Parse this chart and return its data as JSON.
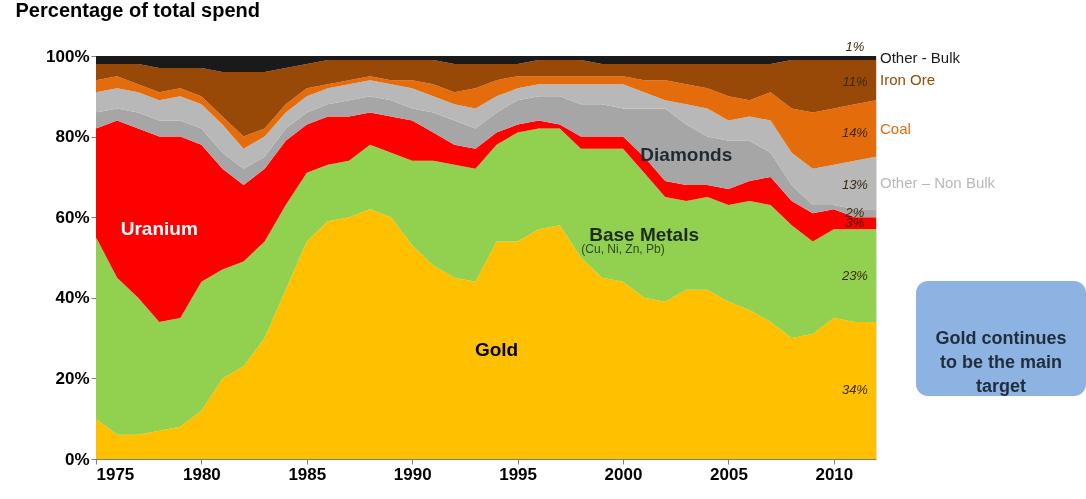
{
  "chart_data": {
    "type": "area",
    "title": "Percentage of total spend",
    "stacked": true,
    "grid": false,
    "x": [
      1975,
      1976,
      1977,
      1978,
      1979,
      1980,
      1981,
      1982,
      1983,
      1984,
      1985,
      1986,
      1987,
      1988,
      1989,
      1990,
      1991,
      1992,
      1993,
      1994,
      1995,
      1996,
      1997,
      1998,
      1999,
      2000,
      2001,
      2002,
      2003,
      2004,
      2005,
      2006,
      2007,
      2008,
      2009,
      2010,
      2011,
      2012
    ],
    "xlim": [
      1975,
      2012
    ],
    "xticks": [
      1975,
      1980,
      1985,
      1990,
      1995,
      2000,
      2005,
      2010
    ],
    "ylim": [
      0,
      100
    ],
    "yticks": [
      {
        "value": 0,
        "label": "0%"
      },
      {
        "value": 20,
        "label": "20%"
      },
      {
        "value": 40,
        "label": "40%"
      },
      {
        "value": 60,
        "label": "60%"
      },
      {
        "value": 80,
        "label": "80%"
      },
      {
        "value": 100,
        "label": "100%"
      }
    ],
    "series": [
      {
        "name": "Gold",
        "color": "#ffc000",
        "values": [
          10,
          6,
          6,
          7,
          8,
          12,
          20,
          23,
          30,
          42,
          54,
          59,
          60,
          62,
          60,
          53,
          48,
          45,
          44,
          54,
          54,
          57,
          58,
          50,
          45,
          44,
          40,
          39,
          42,
          42,
          39,
          37,
          34,
          30,
          31,
          35,
          34,
          34
        ]
      },
      {
        "name": "Base Metals",
        "color": "#92d050",
        "values": [
          45,
          39,
          34,
          27,
          27,
          32,
          27,
          26,
          24,
          21,
          17,
          14,
          14,
          16,
          16,
          21,
          26,
          28,
          28,
          24,
          27,
          25,
          24,
          27,
          32,
          33,
          31,
          26,
          22,
          23,
          24,
          27,
          29,
          28,
          23,
          22,
          23,
          23
        ]
      },
      {
        "name": "Uranium",
        "color": "#ff0000",
        "values": [
          27,
          39,
          42,
          46,
          45,
          34,
          25,
          19,
          18,
          16,
          12,
          12,
          11,
          8,
          9,
          10,
          7,
          5,
          5,
          3,
          2,
          2,
          1,
          3,
          3,
          3,
          4,
          4,
          4,
          3,
          4,
          5,
          7,
          6,
          7,
          5,
          3,
          3
        ]
      },
      {
        "name": "Diamonds",
        "color": "#a6a6a6",
        "values": [
          4,
          3,
          4,
          4,
          4,
          4,
          4,
          4,
          3,
          3,
          3,
          3,
          4,
          4,
          4,
          3,
          5,
          6,
          5,
          5,
          6,
          6,
          7,
          8,
          8,
          7,
          12,
          18,
          15,
          12,
          12,
          10,
          6,
          4,
          2,
          1,
          2,
          2
        ]
      },
      {
        "name": "Other – Non Bulk",
        "color": "#b8b8b8",
        "values": [
          5,
          5,
          5,
          5,
          6,
          6,
          7,
          5,
          5,
          4,
          4,
          4,
          4,
          4,
          4,
          5,
          4,
          4,
          5,
          4,
          3,
          3,
          3,
          5,
          5,
          6,
          4,
          2,
          5,
          7,
          5,
          6,
          8,
          8,
          9,
          10,
          12,
          13
        ]
      },
      {
        "name": "Coal",
        "color": "#e46c0a",
        "values": [
          3,
          3,
          2,
          2,
          2,
          2,
          2,
          3,
          2,
          2,
          2,
          1,
          1,
          1,
          1,
          2,
          3,
          3,
          5,
          4,
          3,
          2,
          2,
          2,
          2,
          2,
          3,
          5,
          5,
          5,
          6,
          4,
          7,
          11,
          14,
          14,
          14,
          14
        ]
      },
      {
        "name": "Iron Ore",
        "color": "#984807",
        "values": [
          4,
          3,
          5,
          6,
          5,
          7,
          11,
          16,
          14,
          9,
          6,
          6,
          5,
          4,
          5,
          5,
          6,
          7,
          6,
          4,
          3,
          4,
          4,
          4,
          3,
          3,
          4,
          4,
          5,
          6,
          8,
          9,
          7,
          12,
          13,
          12,
          11,
          10
        ]
      },
      {
        "name": "Other - Bulk",
        "color": "#1a1a1a",
        "values": [
          2,
          2,
          2,
          3,
          3,
          3,
          4,
          4,
          4,
          3,
          2,
          1,
          1,
          1,
          1,
          1,
          1,
          2,
          2,
          2,
          2,
          1,
          1,
          1,
          2,
          2,
          2,
          2,
          2,
          2,
          2,
          2,
          2,
          1,
          1,
          1,
          1,
          1
        ]
      }
    ],
    "annotations": [
      "(Cu, Ni, Zn, Pb)",
      "Gold continues to be the main target",
      "34%",
      "23%",
      "3%",
      "2%",
      "13%",
      "14%",
      "11%",
      "1%"
    ]
  }
}
